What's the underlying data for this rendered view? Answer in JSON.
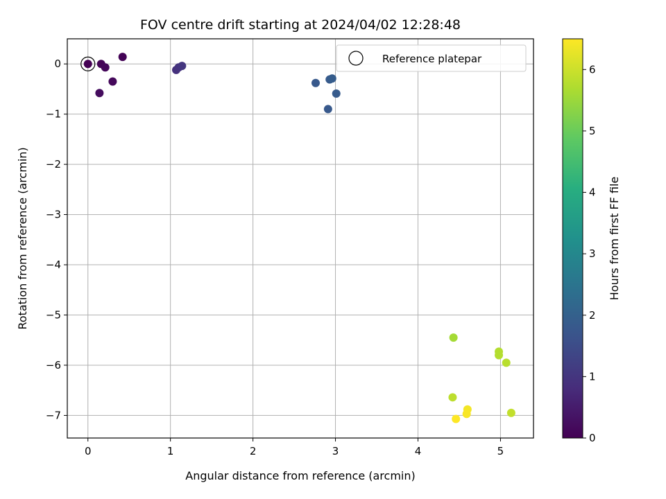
{
  "chart_data": {
    "type": "scatter",
    "title": "FOV centre drift starting at 2024/04/02 12:28:48",
    "xlabel": "Angular distance from reference (arcmin)",
    "ylabel": "Rotation from reference (arcmin)",
    "xlim": [
      -0.25,
      5.4
    ],
    "ylim": [
      -7.45,
      0.5
    ],
    "xticks": [
      0,
      1,
      2,
      3,
      4,
      5
    ],
    "yticks": [
      0,
      -1,
      -2,
      -3,
      -4,
      -5,
      -6,
      -7
    ],
    "grid": true,
    "legend": {
      "placement": "top-right",
      "label": "Reference platepar"
    },
    "reference_point": {
      "x": 0,
      "y": 0
    },
    "colorbar": {
      "label": "Hours from first FF file",
      "range": [
        0,
        6.5
      ],
      "ticks": [
        0,
        1,
        2,
        3,
        4,
        5,
        6
      ],
      "colormap": "viridis"
    },
    "points": [
      {
        "x": 0.0,
        "y": 0.0,
        "hours": 0.0
      },
      {
        "x": 0.16,
        "y": 0.0,
        "hours": 0.05
      },
      {
        "x": 0.21,
        "y": -0.07,
        "hours": 0.1
      },
      {
        "x": 0.42,
        "y": 0.14,
        "hours": 0.05
      },
      {
        "x": 0.3,
        "y": -0.35,
        "hours": 0.15
      },
      {
        "x": 0.14,
        "y": -0.58,
        "hours": 0.2
      },
      {
        "x": 1.07,
        "y": -0.12,
        "hours": 0.9
      },
      {
        "x": 1.1,
        "y": -0.07,
        "hours": 0.95
      },
      {
        "x": 1.14,
        "y": -0.04,
        "hours": 1.0
      },
      {
        "x": 2.76,
        "y": -0.38,
        "hours": 1.8
      },
      {
        "x": 2.93,
        "y": -0.31,
        "hours": 1.85
      },
      {
        "x": 2.96,
        "y": -0.29,
        "hours": 1.9
      },
      {
        "x": 3.01,
        "y": -0.59,
        "hours": 1.85
      },
      {
        "x": 2.91,
        "y": -0.9,
        "hours": 1.8
      },
      {
        "x": 4.43,
        "y": -5.45,
        "hours": 5.6
      },
      {
        "x": 4.98,
        "y": -5.73,
        "hours": 5.75
      },
      {
        "x": 4.98,
        "y": -5.8,
        "hours": 5.75
      },
      {
        "x": 5.07,
        "y": -5.95,
        "hours": 5.8
      },
      {
        "x": 4.42,
        "y": -6.64,
        "hours": 5.85
      },
      {
        "x": 4.6,
        "y": -6.88,
        "hours": 6.4
      },
      {
        "x": 4.59,
        "y": -6.97,
        "hours": 6.45
      },
      {
        "x": 4.46,
        "y": -7.07,
        "hours": 6.5
      },
      {
        "x": 5.13,
        "y": -6.95,
        "hours": 5.9
      }
    ]
  }
}
